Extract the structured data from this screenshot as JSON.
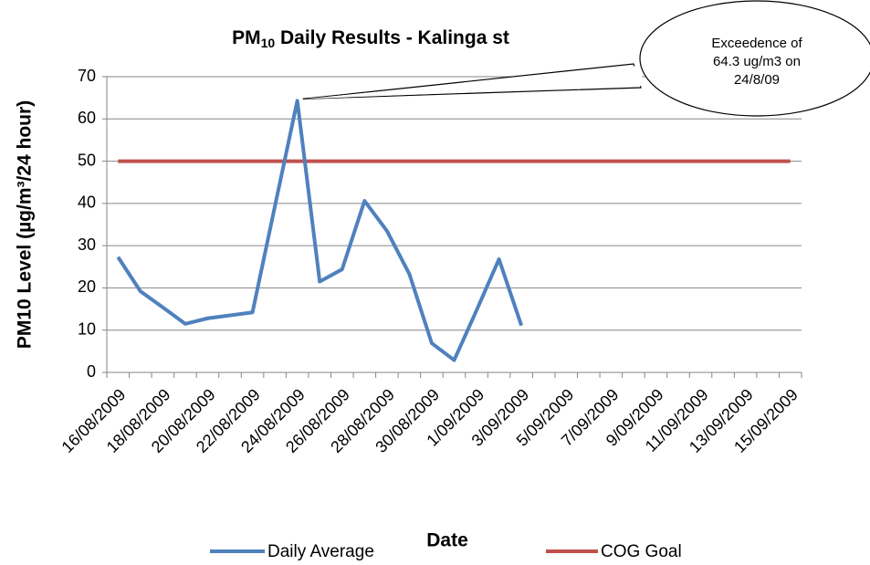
{
  "chart_data": {
    "type": "line",
    "title": [
      "PM",
      "10",
      " Daily Results - Kalinga st"
    ],
    "x_label": "Date",
    "y_label": "PM10 Level (µg/m³/24 hour)",
    "categories": [
      "16/08/2009",
      null,
      "18/08/2009",
      null,
      "20/08/2009",
      null,
      "22/08/2009",
      null,
      "24/08/2009",
      null,
      "26/08/2009",
      null,
      "28/08/2009",
      null,
      "30/08/2009",
      null,
      "1/09/2009",
      null,
      "3/09/2009",
      null,
      "5/09/2009",
      null,
      "7/09/2009",
      null,
      "9/09/2009",
      null,
      "11/09/2009",
      null,
      "13/09/2009",
      null,
      "15/09/2009"
    ],
    "series": [
      {
        "name": "Daily Average",
        "color": "#4f81bd",
        "values": [
          27.3,
          19.2,
          15.4,
          11.5,
          12.8,
          13.5,
          14.2,
          39.3,
          64.3,
          21.5,
          24.4,
          40.6,
          33.5,
          23.3,
          6.9,
          2.9,
          14.7,
          26.8,
          11.1,
          null,
          null,
          null,
          null,
          null,
          null,
          null,
          null,
          null,
          null,
          null,
          null
        ]
      },
      {
        "name": "COG Goal",
        "color": "#c0504d",
        "values": [
          50,
          50,
          50,
          50,
          50,
          50,
          50,
          50,
          50,
          50,
          50,
          50,
          50,
          50,
          50,
          50,
          50,
          50,
          50,
          50,
          50,
          50,
          50,
          50,
          50,
          50,
          50,
          50,
          50,
          50,
          50
        ]
      }
    ],
    "ylim": [
      0,
      70
    ],
    "yticks": [
      0,
      10,
      20,
      30,
      40,
      50,
      60,
      70
    ],
    "grid": true,
    "legend": "bottom",
    "annotation": [
      "Exceedence of",
      "64.3 ug/m3 on",
      "24/8/09"
    ]
  }
}
